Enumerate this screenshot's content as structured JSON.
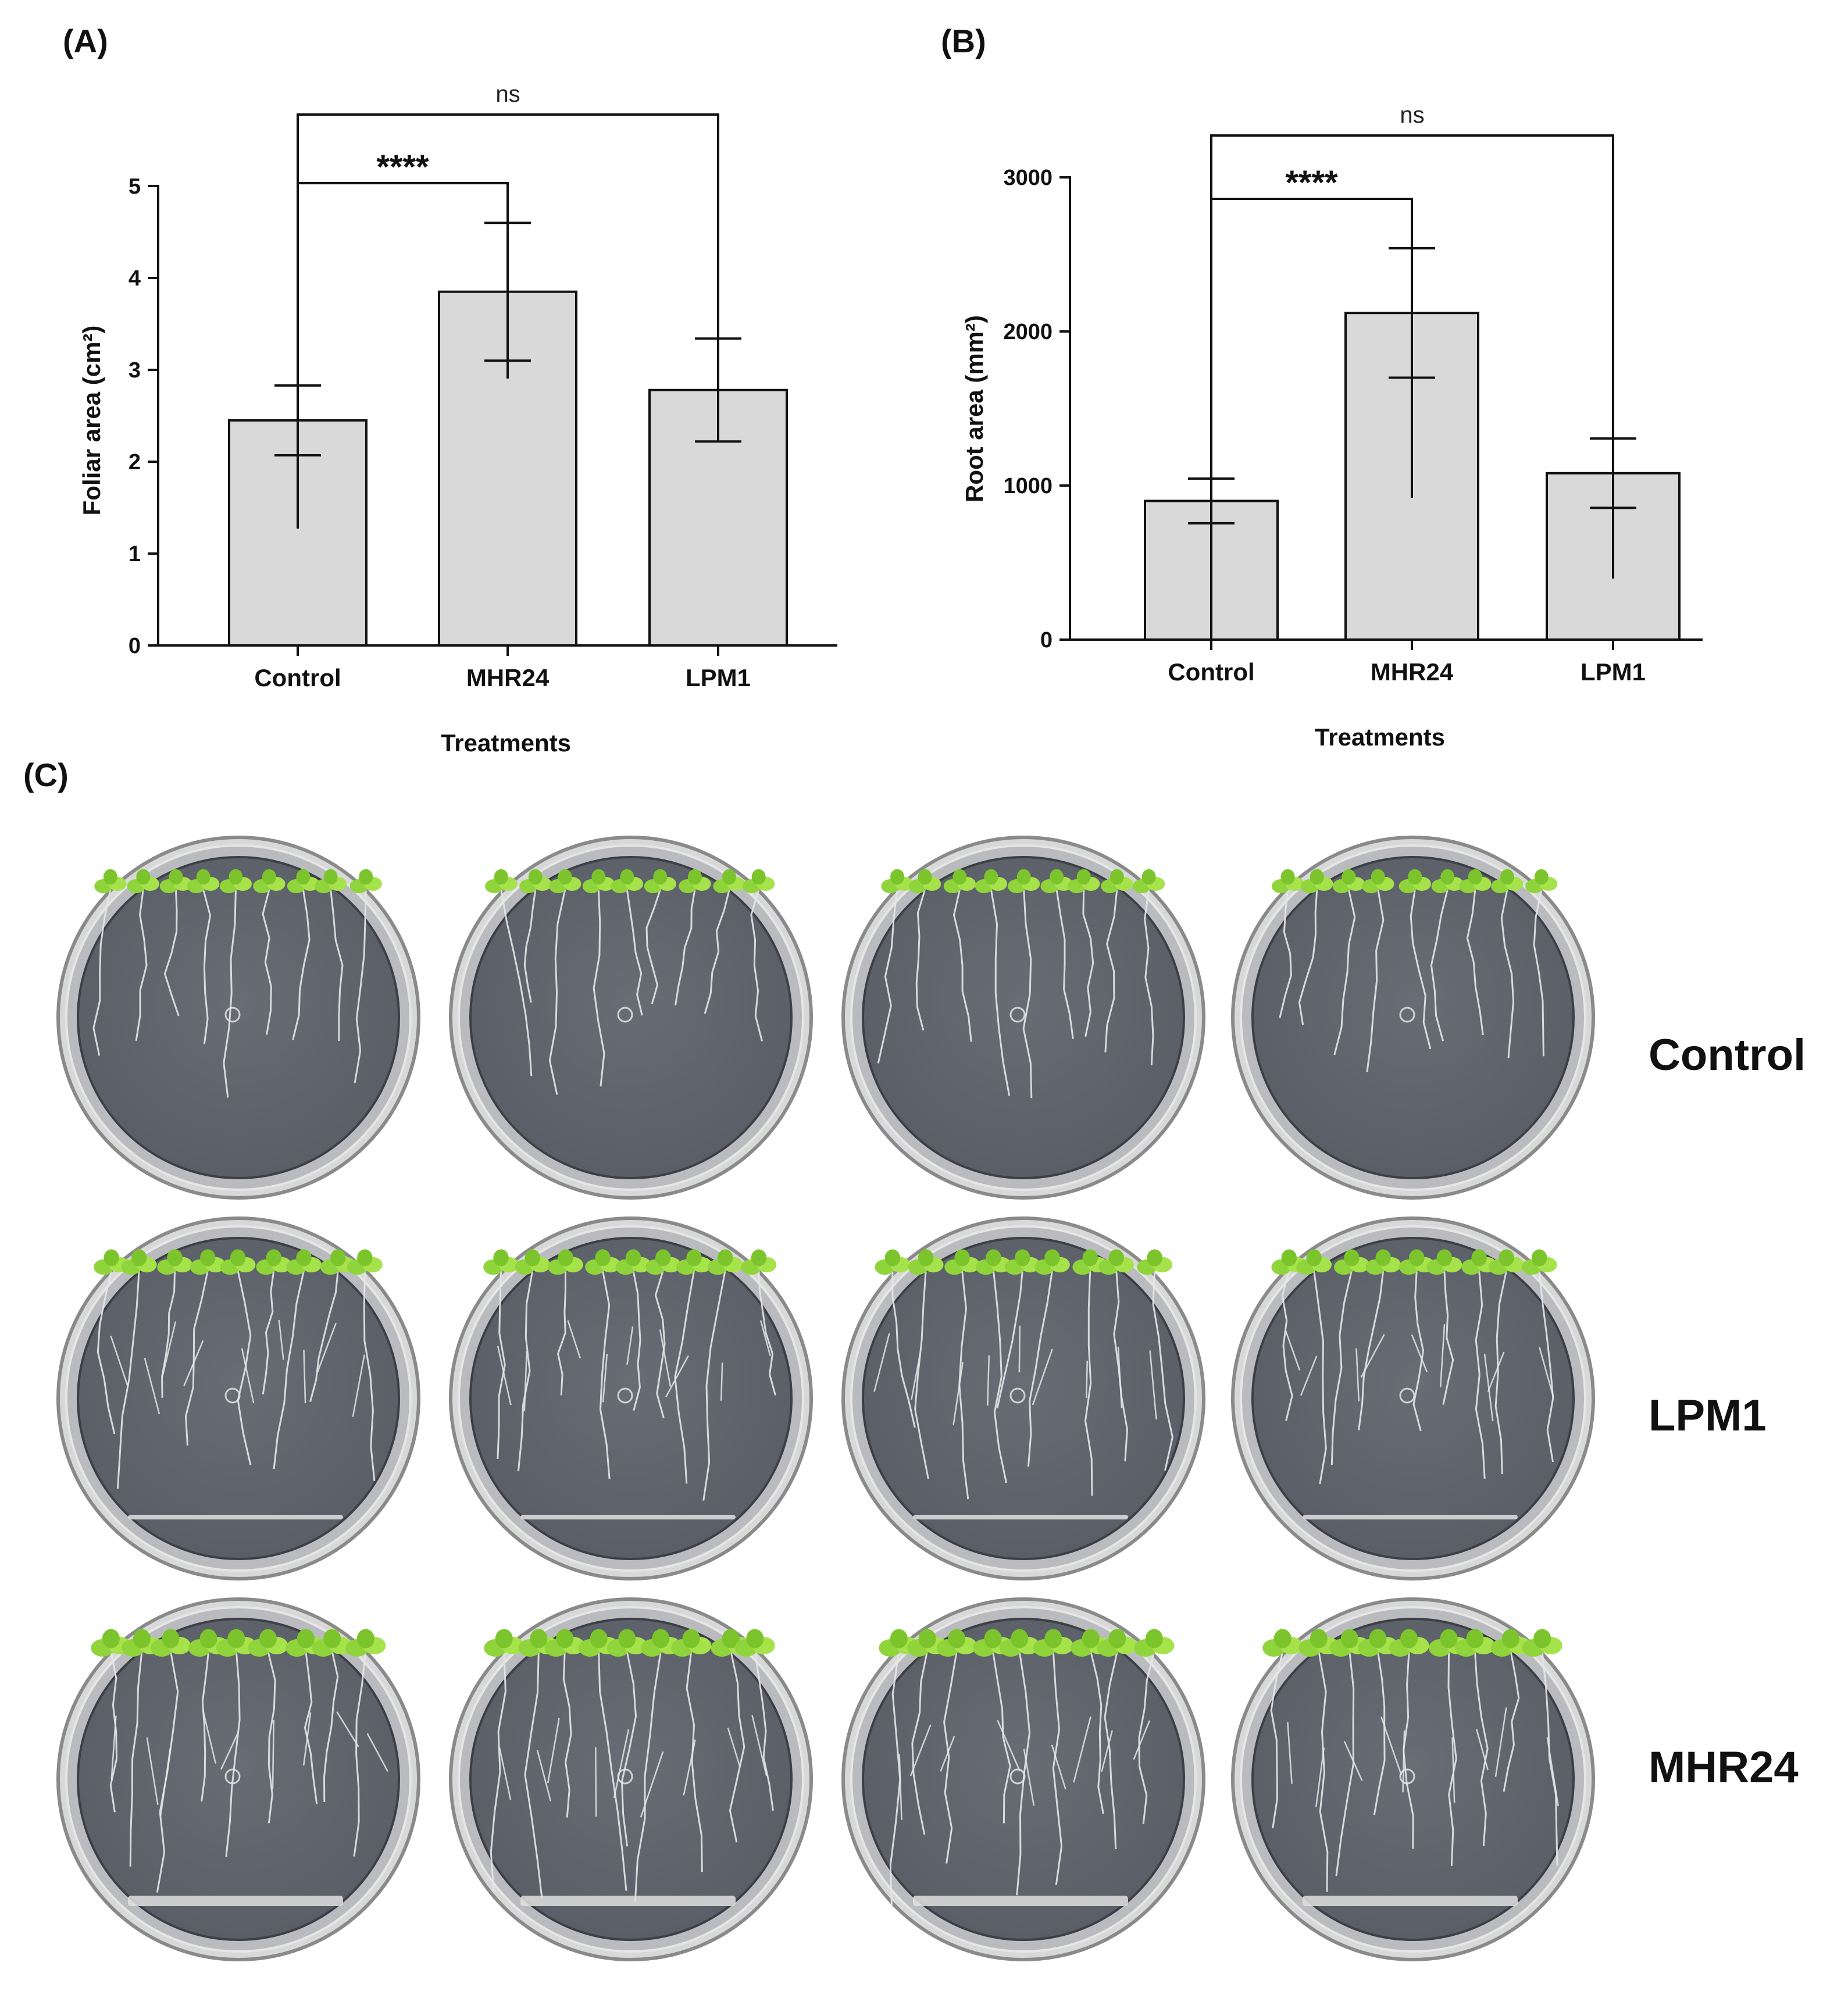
{
  "panels": {
    "a": "(A)",
    "b": "(B)",
    "c": "(C)"
  },
  "chart_data": [
    {
      "type": "bar",
      "categories": [
        "Control",
        "MHR24",
        "LPM1"
      ],
      "values": [
        2.45,
        3.85,
        2.78
      ],
      "errors": [
        0.38,
        0.75,
        0.56
      ],
      "xlabel": "Treatments",
      "ylabel": "Foliar area (cm²)",
      "ylim": [
        0,
        5
      ],
      "yticks": [
        "0",
        "1",
        "2",
        "3",
        "4",
        "5"
      ],
      "bar_color": "#d9d9d9",
      "grid": false,
      "significance": [
        {
          "pair": [
            "Control",
            "MHR24"
          ],
          "label": "****"
        },
        {
          "pair": [
            "Control",
            "LPM1"
          ],
          "label": "ns"
        }
      ]
    },
    {
      "type": "bar",
      "categories": [
        "Control",
        "MHR24",
        "LPM1"
      ],
      "values": [
        900,
        2120,
        1080
      ],
      "errors": [
        145,
        420,
        225
      ],
      "xlabel": "Treatments",
      "ylabel": "Root area (mm²)",
      "ylim": [
        0,
        3000
      ],
      "yticks": [
        "0",
        "1000",
        "2000",
        "3000"
      ],
      "bar_color": "#d9d9d9",
      "grid": false,
      "significance": [
        {
          "pair": [
            "Control",
            "MHR24"
          ],
          "label": "****"
        },
        {
          "pair": [
            "Control",
            "LPM1"
          ],
          "label": "ns"
        }
      ]
    }
  ],
  "photo": {
    "rows": [
      "Control",
      "LPM1",
      "MHR24"
    ],
    "plates_per_row": 4,
    "agar_color": "#5a5e66",
    "leaf_color": "#8fd43a"
  }
}
